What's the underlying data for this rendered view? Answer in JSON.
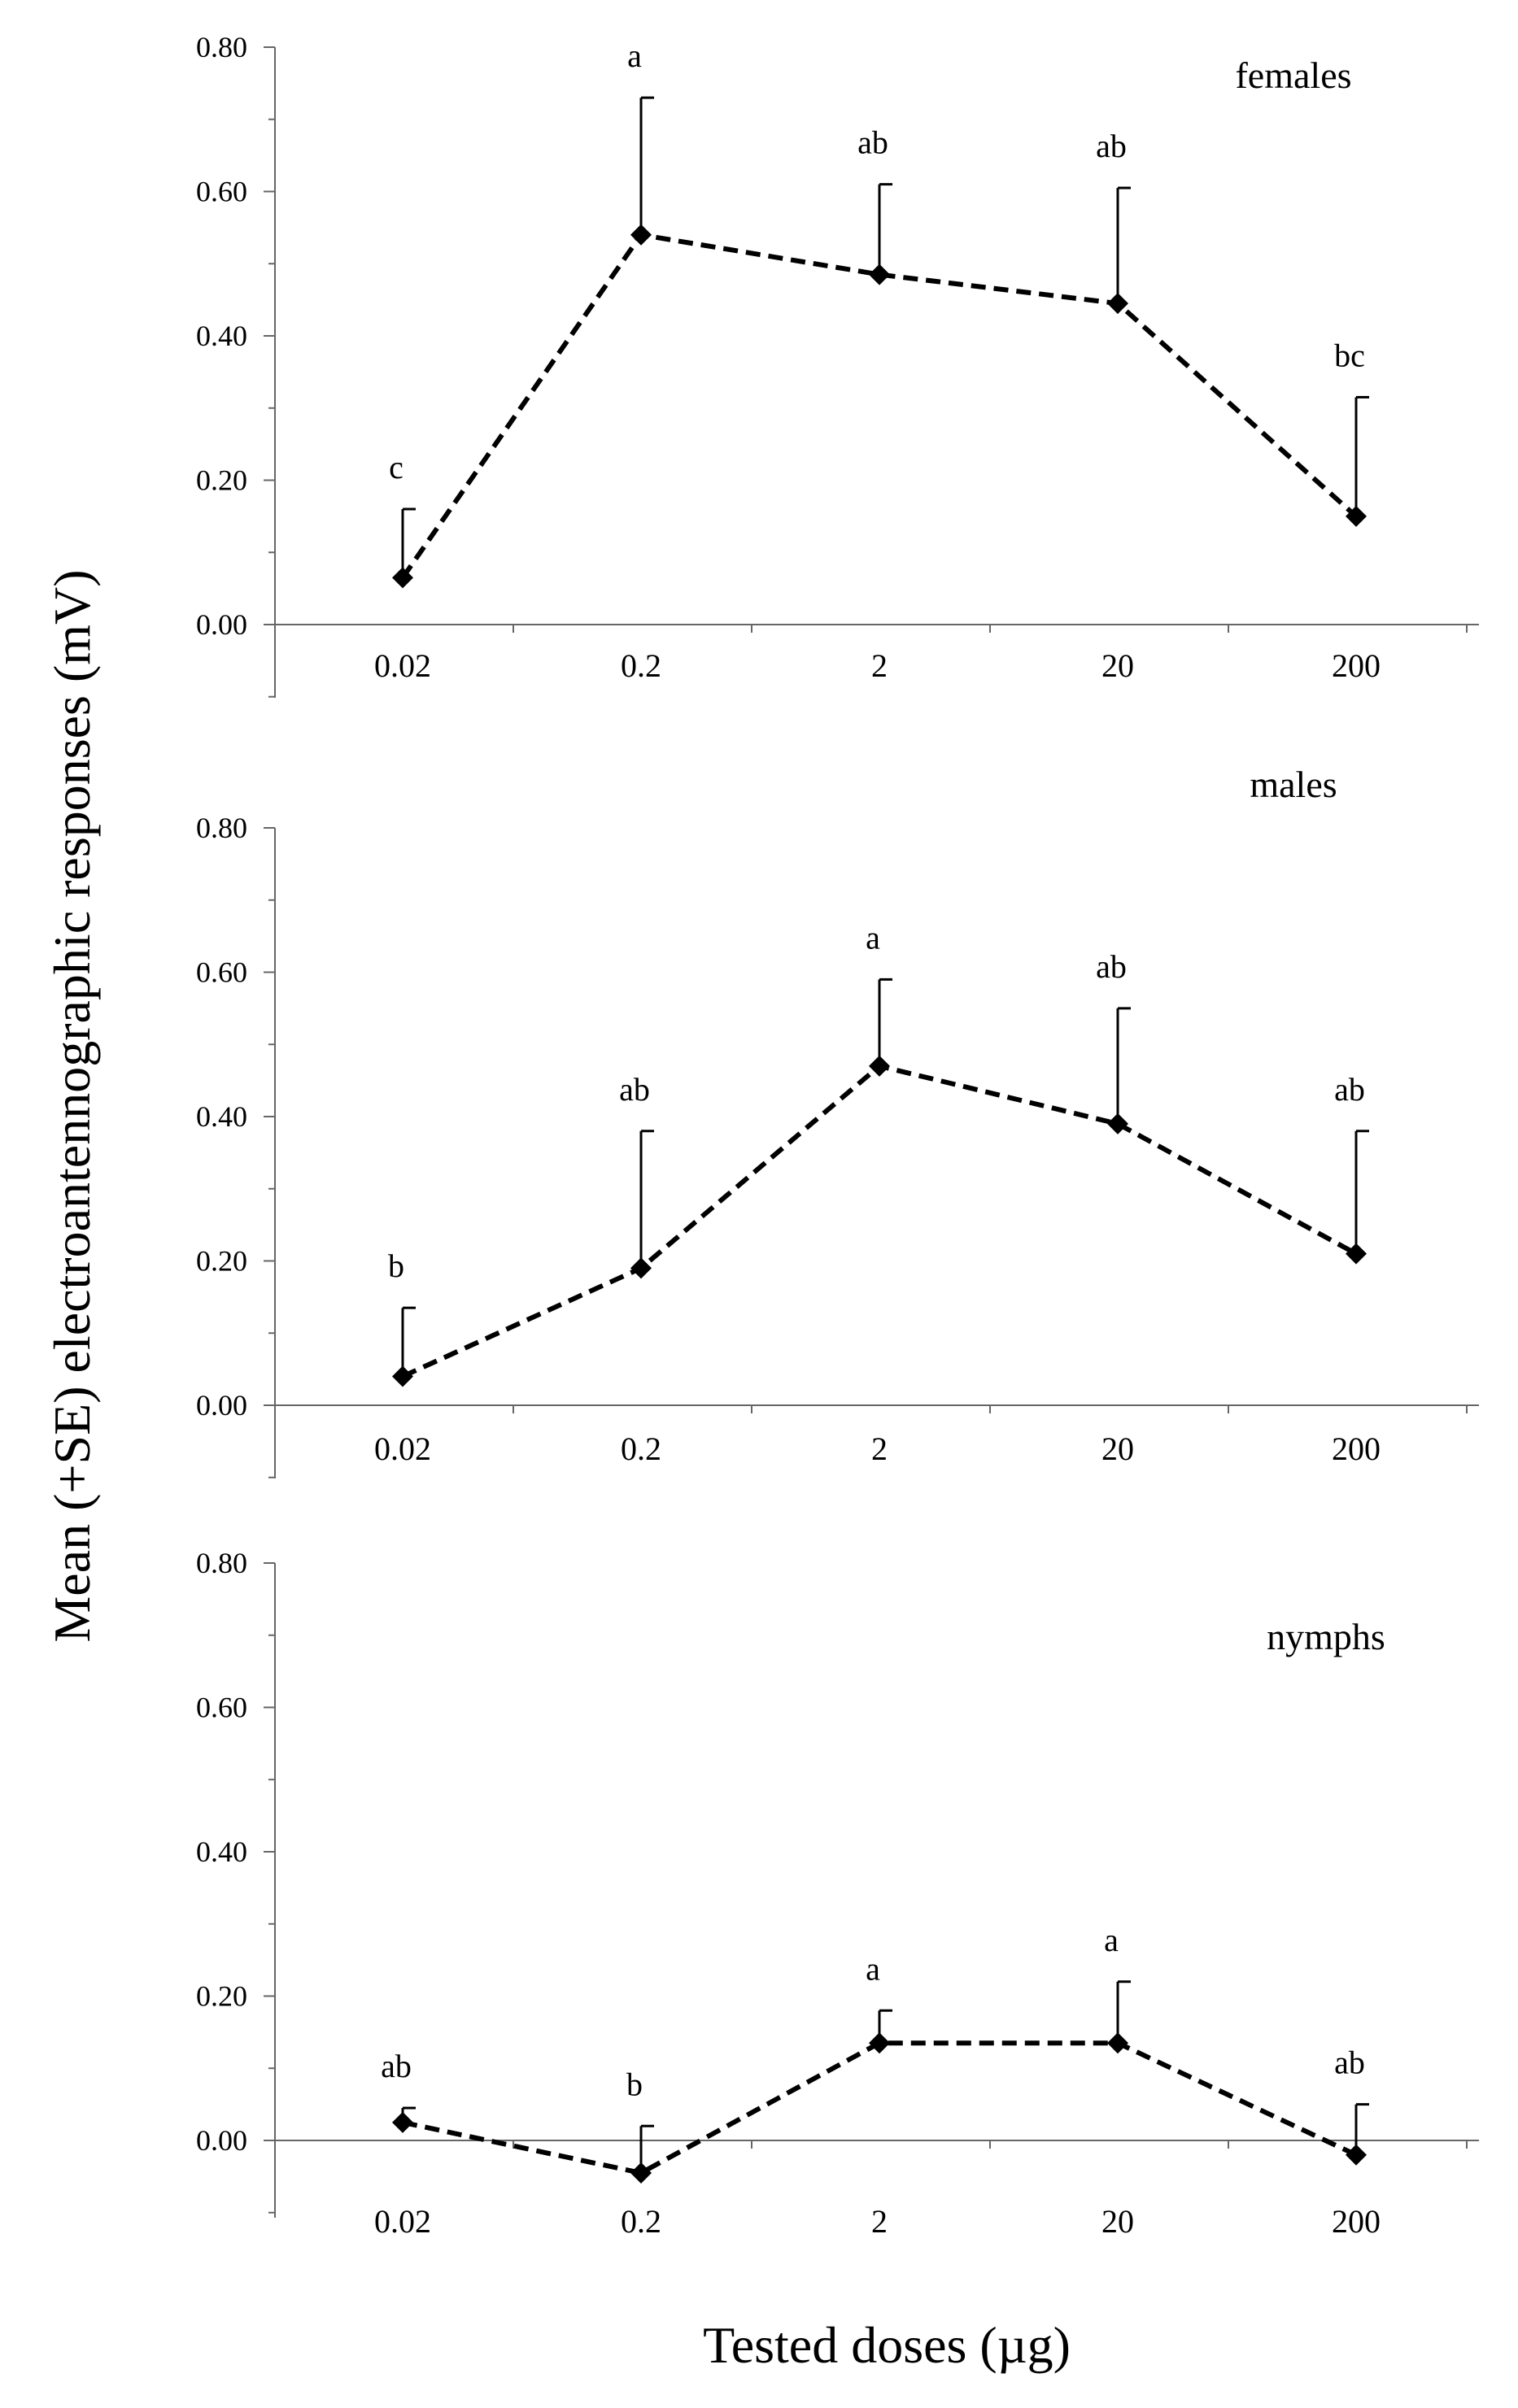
{
  "figure": {
    "ylabel": "Mean (+SE) electroantennographic responses (mV)",
    "xlabel": "Tested doses (µg)"
  },
  "chart_data": [
    {
      "type": "line",
      "panel_label": "females",
      "categories": [
        "0.02",
        "0.2",
        "2",
        "20",
        "200"
      ],
      "values": [
        0.065,
        0.54,
        0.485,
        0.445,
        0.15
      ],
      "error_upper": [
        0.16,
        0.73,
        0.61,
        0.605,
        0.315
      ],
      "significance": [
        "c",
        "a",
        "ab",
        "ab",
        "bc"
      ],
      "ylim": [
        0,
        0.8
      ],
      "yticks": [
        0,
        0.2,
        0.4,
        0.6,
        0.8
      ],
      "ytick_labels": [
        "0.00",
        "0.20",
        "0.40",
        "0.60",
        "0.80"
      ],
      "line_style": "dashed",
      "marker": "diamond",
      "color": "#000000"
    },
    {
      "type": "line",
      "panel_label": "males",
      "categories": [
        "0.02",
        "0.2",
        "2",
        "20",
        "200"
      ],
      "values": [
        0.04,
        0.19,
        0.47,
        0.39,
        0.21
      ],
      "error_upper": [
        0.135,
        0.38,
        0.59,
        0.55,
        0.38
      ],
      "significance": [
        "b",
        "ab",
        "a",
        "ab",
        "ab"
      ],
      "ylim": [
        0,
        0.8
      ],
      "yticks": [
        0,
        0.2,
        0.4,
        0.6,
        0.8
      ],
      "ytick_labels": [
        "0.00",
        "0.20",
        "0.40",
        "0.60",
        "0.80"
      ],
      "line_style": "dashed",
      "marker": "diamond",
      "color": "#000000"
    },
    {
      "type": "line",
      "panel_label": "nymphs",
      "categories": [
        "0.02",
        "0.2",
        "2",
        "20",
        "200"
      ],
      "values": [
        0.025,
        -0.045,
        0.135,
        0.135,
        -0.02
      ],
      "error_upper": [
        0.045,
        0.02,
        0.18,
        0.22,
        0.05
      ],
      "significance": [
        "ab",
        "b",
        "a",
        "a",
        "ab"
      ],
      "ylim": [
        -0.1,
        0.8
      ],
      "yticks": [
        0,
        0.2,
        0.4,
        0.6,
        0.8
      ],
      "ytick_labels": [
        "0.00",
        "0.20",
        "0.40",
        "0.60",
        "0.80"
      ],
      "line_style": "dashed",
      "marker": "diamond",
      "color": "#000000"
    }
  ]
}
